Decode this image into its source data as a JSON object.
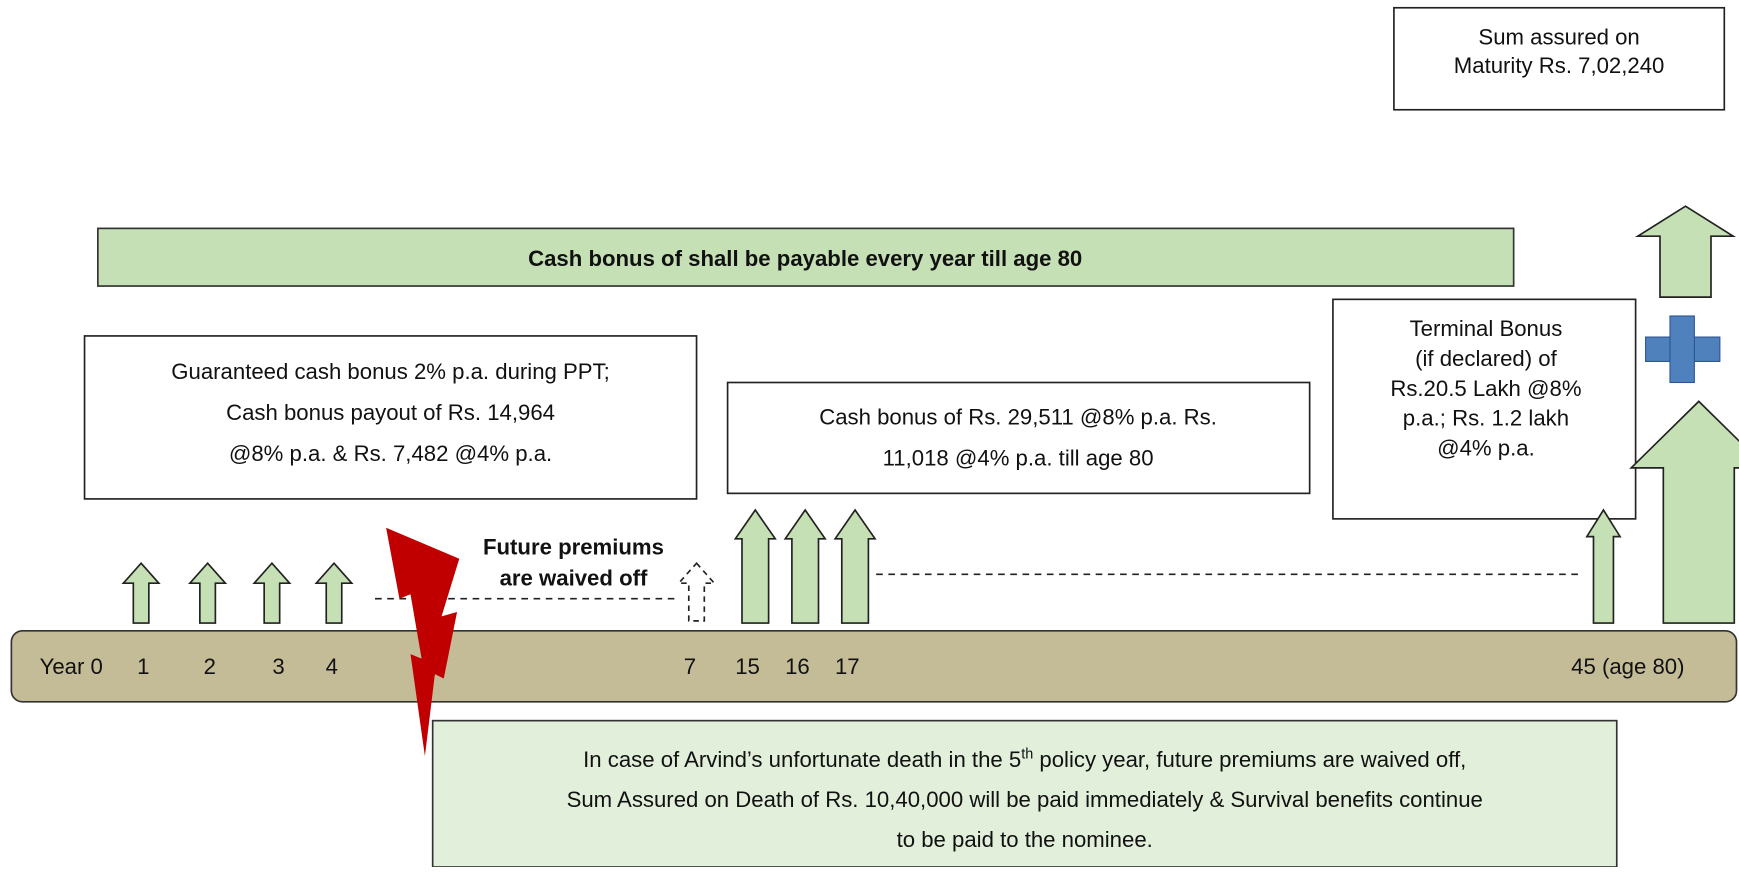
{
  "maturity_box": [
    "Sum assured on",
    "Maturity Rs. 7,02,240"
  ],
  "banner": "Cash bonus of shall be payable every year till age 80",
  "guaranteed_box": [
    "Guaranteed cash bonus 2% p.a. during PPT;",
    "Cash bonus payout of Rs. 14,964",
    "@8% p.a. & Rs. 7,482 @4% p.a."
  ],
  "cash_bonus_box": [
    "Cash bonus of Rs. 29,511 @8% p.a. Rs.",
    "11,018 @4% p.a. till age 80"
  ],
  "terminal_box": [
    "Terminal Bonus",
    "(if declared) of",
    "Rs.20.5 Lakh @8%",
    "p.a.; Rs. 1.2 lakh",
    "@4% p.a."
  ],
  "waiver_label": [
    "Future premiums",
    "are waived off"
  ],
  "timeline": [
    "Year 0",
    "1",
    "2",
    "3",
    "4",
    "7",
    "15",
    "16",
    "17",
    "45 (age 80)"
  ],
  "death_note": {
    "line1_start": "In case of Arvind’s unfortunate death in the 5",
    "line1_sup": "th",
    "line1_end": " policy year, future premiums are waived off,",
    "line2": "Sum Assured on Death of Rs. 10,40,000 will be paid immediately & Survival benefits continue",
    "line3": "to be paid to the nominee."
  }
}
